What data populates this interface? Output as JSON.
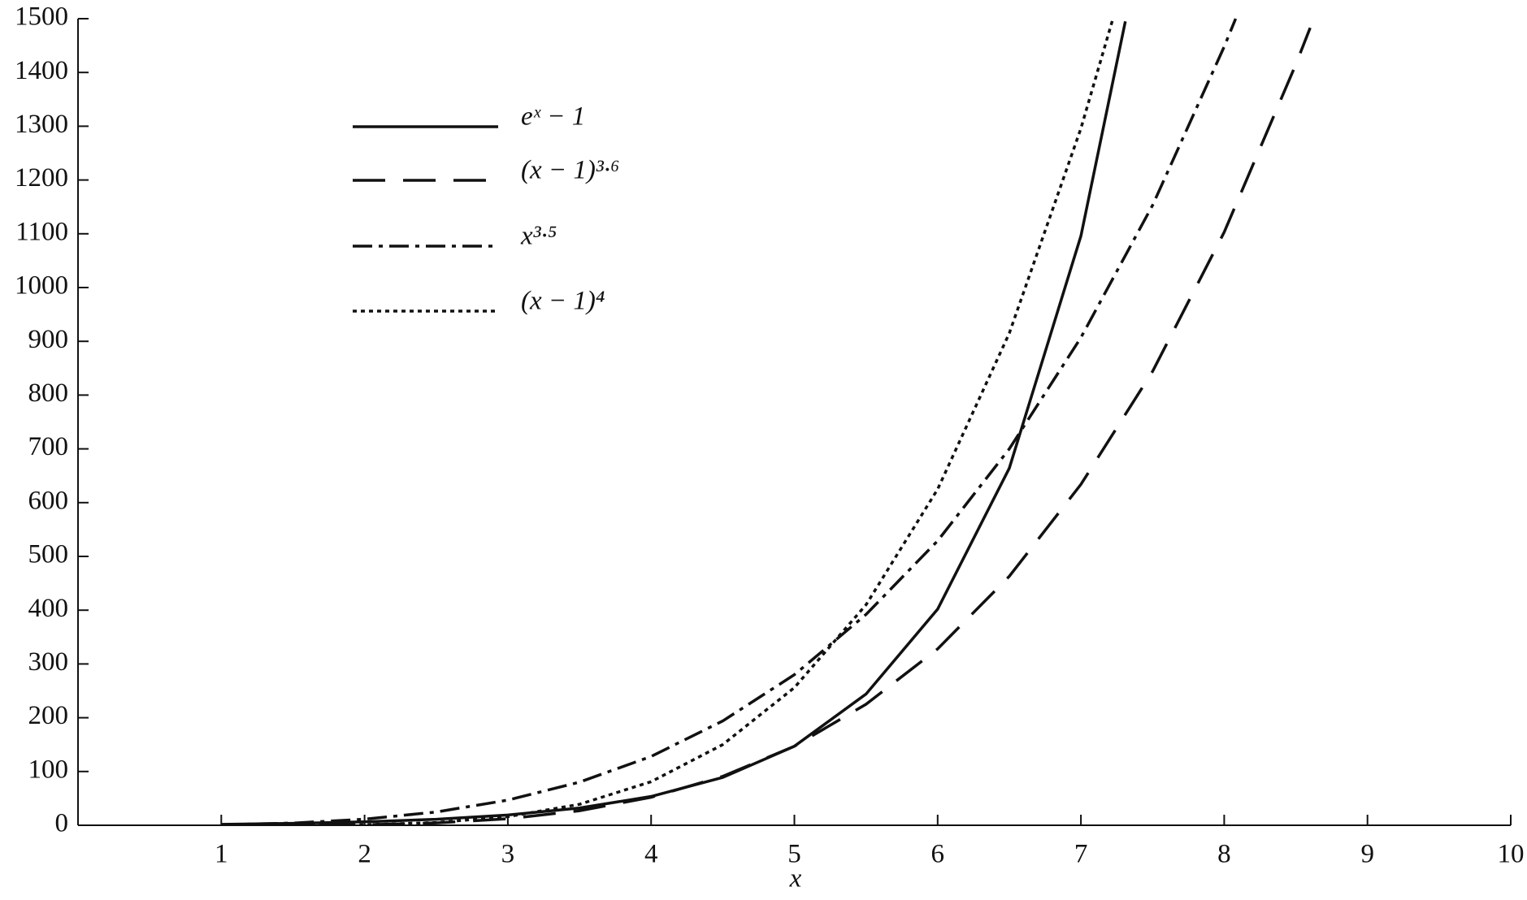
{
  "chart_data": {
    "type": "line",
    "xlabel": "x",
    "xlim": [
      0,
      10
    ],
    "xticks": [
      1,
      2,
      3,
      4,
      5,
      6,
      7,
      8,
      9,
      10
    ],
    "ylim": [
      0,
      1500
    ],
    "yticks": [
      0,
      100,
      200,
      300,
      400,
      500,
      600,
      700,
      800,
      900,
      1000,
      1100,
      1200,
      1300,
      1400,
      1500
    ],
    "grid": false,
    "legend": "upper left",
    "series": [
      {
        "name": "eˣ − 1",
        "color": "#111111",
        "dash": "solid",
        "x": [
          1,
          1.5,
          2,
          2.5,
          3,
          3.5,
          4,
          4.5,
          5,
          5.5,
          6,
          6.5,
          7,
          7.31
        ],
        "values": [
          1.7,
          3.5,
          6.4,
          11.2,
          19.1,
          32.1,
          53.6,
          89,
          147,
          244,
          402,
          664,
          1096,
          1495
        ]
      },
      {
        "name": "(x − 1)³·⁶",
        "color": "#111111",
        "dash": "dashed",
        "x": [
          1,
          1.5,
          2,
          2.5,
          3,
          3.5,
          4,
          4.5,
          5,
          5.5,
          6,
          6.5,
          7,
          7.5,
          8,
          8.5,
          8.6
        ],
        "values": [
          0,
          0.08,
          1,
          4.3,
          12.1,
          27,
          52,
          91,
          147,
          225,
          328,
          463,
          634,
          844,
          1103,
          1415,
          1483
        ]
      },
      {
        "name": "x³·⁵",
        "color": "#111111",
        "dash": "dashdot",
        "x": [
          1,
          1.5,
          2,
          2.5,
          3,
          3.5,
          4,
          4.5,
          5,
          5.5,
          6,
          6.5,
          7,
          7.5,
          8,
          8.08
        ],
        "values": [
          1,
          4.1,
          11.3,
          24.7,
          46.8,
          80.2,
          128,
          194,
          280,
          392,
          529,
          700,
          907,
          1153,
          1448,
          1500
        ]
      },
      {
        "name": "(x − 1)⁴",
        "color": "#111111",
        "dash": "dotted",
        "x": [
          1,
          1.5,
          2,
          2.5,
          3,
          3.5,
          4,
          4.5,
          5,
          5.5,
          6,
          6.5,
          7,
          7.22
        ],
        "values": [
          0,
          0.06,
          1,
          5.1,
          16,
          39,
          81,
          150,
          256,
          410,
          625,
          915,
          1296,
          1497
        ]
      }
    ]
  }
}
